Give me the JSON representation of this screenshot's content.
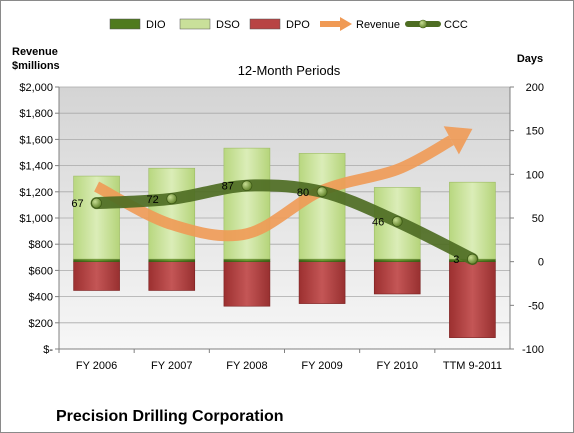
{
  "chart_data": {
    "type": "bar",
    "title": "12-Month Periods",
    "company": "Precision Drilling Corporation",
    "categories": [
      "FY 2006",
      "FY 2007",
      "FY 2008",
      "FY 2009",
      "FY 2010",
      "TTM 9-2011"
    ],
    "left_axis": {
      "title_line1": "Revenue",
      "title_line2": "$millions",
      "ylim": [
        0,
        2000
      ],
      "ticks": [
        0,
        200,
        400,
        600,
        800,
        1000,
        1200,
        1400,
        1600,
        1800,
        2000
      ],
      "tick_labels": [
        "$-",
        "$200",
        "$400",
        "$600",
        "$800",
        "$1,000",
        "$1,200",
        "$1,400",
        "$1,600",
        "$1,800",
        "$2,000"
      ]
    },
    "right_axis": {
      "title": "Days",
      "ylim": [
        -100,
        200
      ],
      "ticks": [
        -100,
        -50,
        0,
        50,
        100,
        150,
        200
      ],
      "tick_labels": [
        "-100",
        "-50",
        "0",
        "50",
        "100",
        "150",
        "200"
      ]
    },
    "series": [
      {
        "name": "DIO",
        "axis": "days",
        "kind": "bar",
        "color": "#4f7a1e",
        "values": [
          3,
          3,
          3,
          3,
          3,
          3
        ]
      },
      {
        "name": "DSO",
        "axis": "days",
        "kind": "bar",
        "color": "#c9e09a",
        "values": [
          95,
          104,
          127,
          121,
          82,
          88
        ]
      },
      {
        "name": "DPO",
        "axis": "days",
        "kind": "bar",
        "color": "#b84444",
        "values": [
          -33,
          -33,
          -51,
          -48,
          -37,
          -87
        ]
      },
      {
        "name": "Revenue",
        "axis": "revenue",
        "kind": "arrow",
        "color": "#f09a55",
        "values": [
          1240,
          950,
          880,
          1210,
          1370,
          1680
        ]
      },
      {
        "name": "CCC",
        "axis": "days",
        "kind": "line",
        "color": "#4e6d23",
        "values": [
          67,
          72,
          87,
          80,
          46,
          3
        ],
        "labels": [
          "67",
          "72",
          "87",
          "80",
          "46",
          "3"
        ]
      }
    ],
    "legend": {
      "position": "top",
      "entries": [
        {
          "name": "DIO",
          "icon": "bar-swatch",
          "color": "#4f7a1e"
        },
        {
          "name": "DSO",
          "icon": "bar-swatch",
          "color": "#c9e09a"
        },
        {
          "name": "DPO",
          "icon": "bar-swatch",
          "color": "#b84444"
        },
        {
          "name": "Revenue",
          "icon": "arrow",
          "color": "#f09a55"
        },
        {
          "name": "CCC",
          "icon": "line-marker",
          "color": "#4e6d23"
        }
      ]
    },
    "grid": true
  }
}
